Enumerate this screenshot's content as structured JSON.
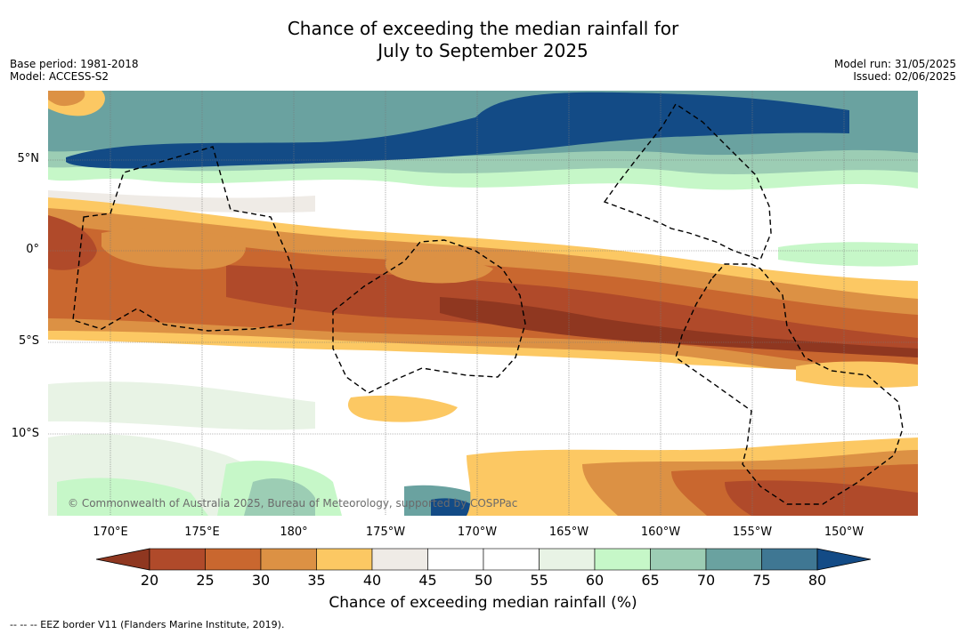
{
  "title_line1": "Chance of exceeding the median rainfall for",
  "title_line2": "July to September 2025",
  "meta_left": {
    "base_period": "Base period: 1981-2018",
    "model": "Model: ACCESS-S2"
  },
  "meta_right": {
    "model_run": "Model run: 31/05/2025",
    "issued": "Issued: 02/06/2025"
  },
  "copyright": "© Commonwealth of Australia 2025, Bureau of Meteorology, supported by COSPPac",
  "lat_ticks": [
    "5°N",
    "0°",
    "5°S",
    "10°S"
  ],
  "lon_ticks": [
    "170°E",
    "175°E",
    "180°",
    "175°W",
    "170°W",
    "165°W",
    "160°W",
    "155°W",
    "150°W"
  ],
  "colorbar": {
    "label": "Chance of exceeding median rainfall (%)",
    "ticks": [
      "20",
      "25",
      "30",
      "35",
      "40",
      "45",
      "50",
      "55",
      "60",
      "65",
      "70",
      "75",
      "80"
    ],
    "colors": [
      "#b04a2a",
      "#c9672f",
      "#dc9144",
      "#fcc863",
      "#efebe6",
      "#ffffff",
      "#ffffff",
      "#e8f3e5",
      "#c6f7c8",
      "#9ccdb4",
      "#6aa2a0",
      "#3f7793"
    ],
    "under_color": "#8f3720",
    "over_color": "#134b86"
  },
  "footnote": "-- -- -- EEZ border V11 (Flanders Marine Institute, 2019)."
}
